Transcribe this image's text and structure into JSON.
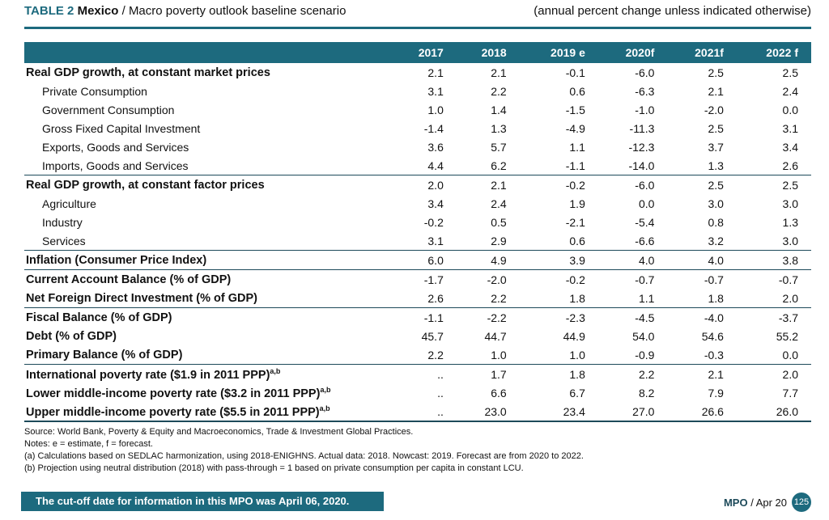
{
  "header": {
    "table_label": "TABLE 2",
    "country": "Mexico",
    "title": " / Macro poverty outlook baseline scenario",
    "subtitle": "(annual percent change unless indicated otherwise)"
  },
  "columns": [
    "2017",
    "2018",
    "2019 e",
    "2020f",
    "2021f",
    "2022 f"
  ],
  "rows": [
    {
      "label": "Real GDP growth, at constant market prices",
      "values": [
        "2.1",
        "2.1",
        "-0.1",
        "-6.0",
        "2.5",
        "2.5"
      ],
      "bold": true
    },
    {
      "label": "Private Consumption",
      "values": [
        "3.1",
        "2.2",
        "0.6",
        "-6.3",
        "2.1",
        "2.4"
      ]
    },
    {
      "label": "Government Consumption",
      "values": [
        "1.0",
        "1.4",
        "-1.5",
        "-1.0",
        "-2.0",
        "0.0"
      ]
    },
    {
      "label": "Gross Fixed Capital Investment",
      "values": [
        "-1.4",
        "1.3",
        "-4.9",
        "-11.3",
        "2.5",
        "3.1"
      ]
    },
    {
      "label": "Exports, Goods and Services",
      "values": [
        "3.6",
        "5.7",
        "1.1",
        "-12.3",
        "3.7",
        "3.4"
      ]
    },
    {
      "label": "Imports, Goods and Services",
      "values": [
        "4.4",
        "6.2",
        "-1.1",
        "-14.0",
        "1.3",
        "2.6"
      ]
    },
    {
      "label": "Real GDP growth, at constant factor prices",
      "values": [
        "2.0",
        "2.1",
        "-0.2",
        "-6.0",
        "2.5",
        "2.5"
      ],
      "bold": true,
      "sep": true
    },
    {
      "label": "Agriculture",
      "values": [
        "3.4",
        "2.4",
        "1.9",
        "0.0",
        "3.0",
        "3.0"
      ]
    },
    {
      "label": "Industry",
      "values": [
        "-0.2",
        "0.5",
        "-2.1",
        "-5.4",
        "0.8",
        "1.3"
      ]
    },
    {
      "label": "Services",
      "values": [
        "3.1",
        "2.9",
        "0.6",
        "-6.6",
        "3.2",
        "3.0"
      ]
    },
    {
      "label": "Inflation (Consumer Price Index)",
      "values": [
        "6.0",
        "4.9",
        "3.9",
        "4.0",
        "4.0",
        "3.8"
      ],
      "bold": true,
      "sep": true
    },
    {
      "label": "Current Account Balance (% of GDP)",
      "values": [
        "-1.7",
        "-2.0",
        "-0.2",
        "-0.7",
        "-0.7",
        "-0.7"
      ],
      "bold": true,
      "sep": true
    },
    {
      "label": "Net Foreign Direct Investment (% of GDP)",
      "values": [
        "2.6",
        "2.2",
        "1.8",
        "1.1",
        "1.8",
        "2.0"
      ],
      "bold": true
    },
    {
      "label": "Fiscal Balance (% of GDP)",
      "values": [
        "-1.1",
        "-2.2",
        "-2.3",
        "-4.5",
        "-4.0",
        "-3.7"
      ],
      "bold": true,
      "sep": true
    },
    {
      "label": "Debt (% of GDP)",
      "values": [
        "45.7",
        "44.7",
        "44.9",
        "54.0",
        "54.6",
        "55.2"
      ],
      "bold": true
    },
    {
      "label": "Primary Balance (% of GDP)",
      "values": [
        "2.2",
        "1.0",
        "1.0",
        "-0.9",
        "-0.3",
        "0.0"
      ],
      "bold": true
    },
    {
      "label": "International poverty rate ($1.9 in 2011 PPP)",
      "sup": "a,b",
      "values": [
        "..",
        "1.7",
        "1.8",
        "2.2",
        "2.1",
        "2.0"
      ],
      "bold": true,
      "sep": true
    },
    {
      "label": "Lower middle-income poverty rate ($3.2 in 2011 PPP)",
      "sup": "a,b",
      "values": [
        "..",
        "6.6",
        "6.7",
        "8.2",
        "7.9",
        "7.7"
      ],
      "bold": true
    },
    {
      "label": "Upper middle-income poverty rate ($5.5 in 2011 PPP)",
      "sup": "a,b",
      "values": [
        "..",
        "23.0",
        "23.4",
        "27.0",
        "26.6",
        "26.0"
      ],
      "bold": true
    }
  ],
  "notes": [
    "Source: World Bank, Poverty & Equity and Macroeconomics, Trade & Investment Global Practices.",
    "Notes: e = estimate, f = forecast.",
    "(a) Calculations based on SEDLAC harmonization, using 2018-ENIGHNS. Actual data: 2018. Nowcast: 2019. Forecast are from 2020 to 2022.",
    "(b) Projection using neutral distribution (2018) with pass-through = 1 based on private consumption per capita in constant LCU."
  ],
  "footer": {
    "cutoff": "The cut-off date for information in this MPO was April 06, 2020.",
    "mpo": "MPO",
    "date": " / Apr 20",
    "page": "125"
  }
}
